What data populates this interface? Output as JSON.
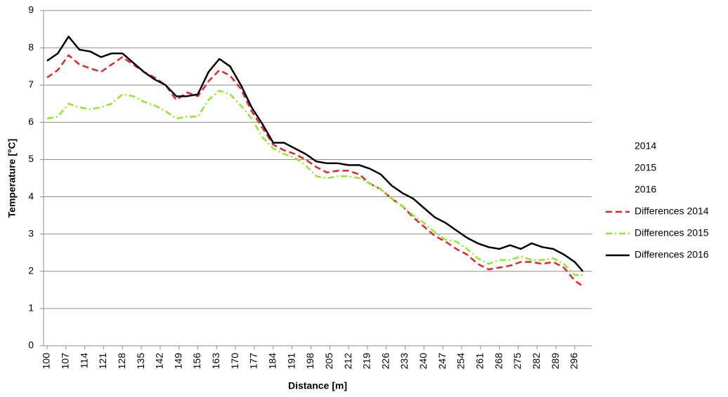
{
  "chart_data": {
    "type": "line",
    "x_label": "Distance [m]",
    "y_label": "Temperature [°C]",
    "x": [
      100,
      104,
      108,
      112,
      116,
      120,
      124,
      128,
      132,
      136,
      140,
      144,
      148,
      152,
      156,
      160,
      164,
      168,
      172,
      176,
      180,
      184,
      188,
      192,
      196,
      200,
      204,
      208,
      212,
      216,
      220,
      224,
      228,
      232,
      236,
      240,
      244,
      248,
      252,
      256,
      260,
      264,
      268,
      272,
      276,
      280,
      284,
      288,
      292,
      296,
      299
    ],
    "xlim": [
      98.7,
      302.3
    ],
    "xticks": [
      100,
      107,
      114,
      121,
      128,
      135,
      142,
      149,
      156,
      163,
      170,
      177,
      184,
      191,
      198,
      205,
      212,
      219,
      226,
      233,
      240,
      247,
      254,
      261,
      268,
      275,
      282,
      289,
      296
    ],
    "ylim": [
      0,
      9
    ],
    "yticks": [
      0,
      1,
      2,
      3,
      4,
      5,
      6,
      7,
      8,
      9
    ],
    "grid": true,
    "legend": "right",
    "series": [
      {
        "name": "2014",
        "color": null,
        "dash": "none",
        "values": [
          null,
          null,
          null,
          null,
          null,
          null,
          null,
          null,
          null,
          null,
          null,
          null,
          null,
          null,
          null,
          null,
          null,
          null,
          null,
          null,
          null,
          null,
          null,
          null,
          null,
          null,
          null,
          null,
          null,
          null,
          null,
          null,
          null,
          null,
          null,
          null,
          null,
          null,
          null,
          null,
          null,
          null,
          null,
          null,
          null,
          null,
          null,
          null,
          null,
          null,
          null
        ]
      },
      {
        "name": "2015",
        "color": null,
        "dash": "none",
        "values": [
          null,
          null,
          null,
          null,
          null,
          null,
          null,
          null,
          null,
          null,
          null,
          null,
          null,
          null,
          null,
          null,
          null,
          null,
          null,
          null,
          null,
          null,
          null,
          null,
          null,
          null,
          null,
          null,
          null,
          null,
          null,
          null,
          null,
          null,
          null,
          null,
          null,
          null,
          null,
          null,
          null,
          null,
          null,
          null,
          null,
          null,
          null,
          null,
          null,
          null,
          null
        ]
      },
      {
        "name": "2016",
        "color": null,
        "dash": "none",
        "values": [
          null,
          null,
          null,
          null,
          null,
          null,
          null,
          null,
          null,
          null,
          null,
          null,
          null,
          null,
          null,
          null,
          null,
          null,
          null,
          null,
          null,
          null,
          null,
          null,
          null,
          null,
          null,
          null,
          null,
          null,
          null,
          null,
          null,
          null,
          null,
          null,
          null,
          null,
          null,
          null,
          null,
          null,
          null,
          null,
          null,
          null,
          null,
          null,
          null,
          null,
          null
        ]
      },
      {
        "name": "Differences 2014",
        "color": "#e8222a",
        "dash": "dashed",
        "values": [
          7.2,
          7.4,
          7.8,
          7.55,
          7.45,
          7.35,
          7.55,
          7.75,
          7.55,
          7.35,
          7.2,
          7.0,
          6.6,
          6.8,
          6.7,
          7.1,
          7.4,
          7.25,
          6.9,
          6.3,
          5.85,
          5.4,
          5.25,
          5.15,
          5.0,
          4.8,
          4.65,
          4.7,
          4.7,
          4.6,
          4.35,
          4.2,
          3.95,
          3.75,
          3.45,
          3.2,
          2.95,
          2.8,
          2.6,
          2.45,
          2.2,
          2.05,
          2.1,
          2.15,
          2.25,
          2.25,
          2.2,
          2.25,
          2.1,
          1.75,
          1.6
        ]
      },
      {
        "name": "Differences 2015",
        "color": "#8fe82a",
        "dash": "dashdot",
        "values": [
          6.1,
          6.15,
          6.5,
          6.4,
          6.35,
          6.4,
          6.5,
          6.75,
          6.7,
          6.55,
          6.45,
          6.3,
          6.1,
          6.15,
          6.15,
          6.6,
          6.85,
          6.75,
          6.45,
          6.1,
          5.6,
          5.3,
          5.15,
          5.05,
          4.85,
          4.55,
          4.5,
          4.55,
          4.55,
          4.5,
          4.35,
          4.2,
          3.95,
          3.75,
          3.5,
          3.3,
          3.05,
          2.85,
          2.8,
          2.6,
          2.35,
          2.2,
          2.3,
          2.3,
          2.4,
          2.3,
          2.3,
          2.35,
          2.2,
          1.9,
          1.9
        ]
      },
      {
        "name": "Differences 2016",
        "color": "#000000",
        "dash": "solid",
        "values": [
          7.65,
          7.85,
          8.3,
          7.95,
          7.9,
          7.75,
          7.85,
          7.85,
          7.6,
          7.35,
          7.15,
          7.0,
          6.7,
          6.7,
          6.75,
          7.35,
          7.7,
          7.5,
          7.0,
          6.4,
          5.95,
          5.45,
          5.45,
          5.3,
          5.15,
          4.95,
          4.9,
          4.9,
          4.85,
          4.85,
          4.75,
          4.6,
          4.3,
          4.1,
          3.95,
          3.7,
          3.45,
          3.3,
          3.1,
          2.9,
          2.75,
          2.65,
          2.6,
          2.7,
          2.6,
          2.75,
          2.65,
          2.6,
          2.45,
          2.25,
          2.0
        ]
      }
    ]
  }
}
